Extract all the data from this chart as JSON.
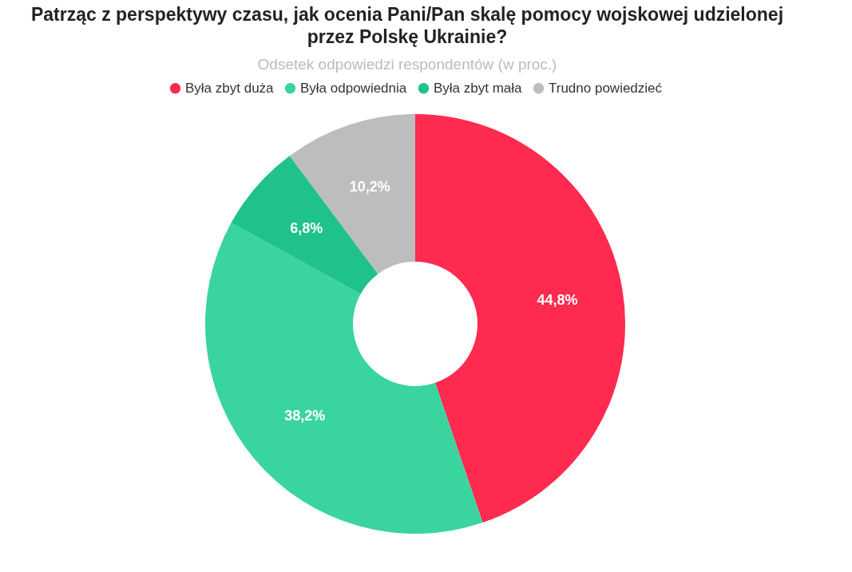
{
  "chart_data": {
    "type": "donut",
    "title": "Patrząc z perspektywy czasu, jak ocenia Pani/Pan skalę pomocy wojskowej udzielonej przez Polskę Ukrainie?",
    "subtitle": "Odsetek odpowiedzi respondentów (w proc.)",
    "categories": [
      "Była zbyt duża",
      "Była odpowiednia",
      "Była zbyt mała",
      "Trudno powiedzieć"
    ],
    "values": [
      44.8,
      38.2,
      6.8,
      10.2
    ],
    "colors": [
      "#ff2a4f",
      "#3ad49f",
      "#1fc28a",
      "#bdbdbd"
    ],
    "value_labels": [
      "44,8%",
      "38,2%",
      "6,8%",
      "10,2%"
    ],
    "legend": "top"
  }
}
